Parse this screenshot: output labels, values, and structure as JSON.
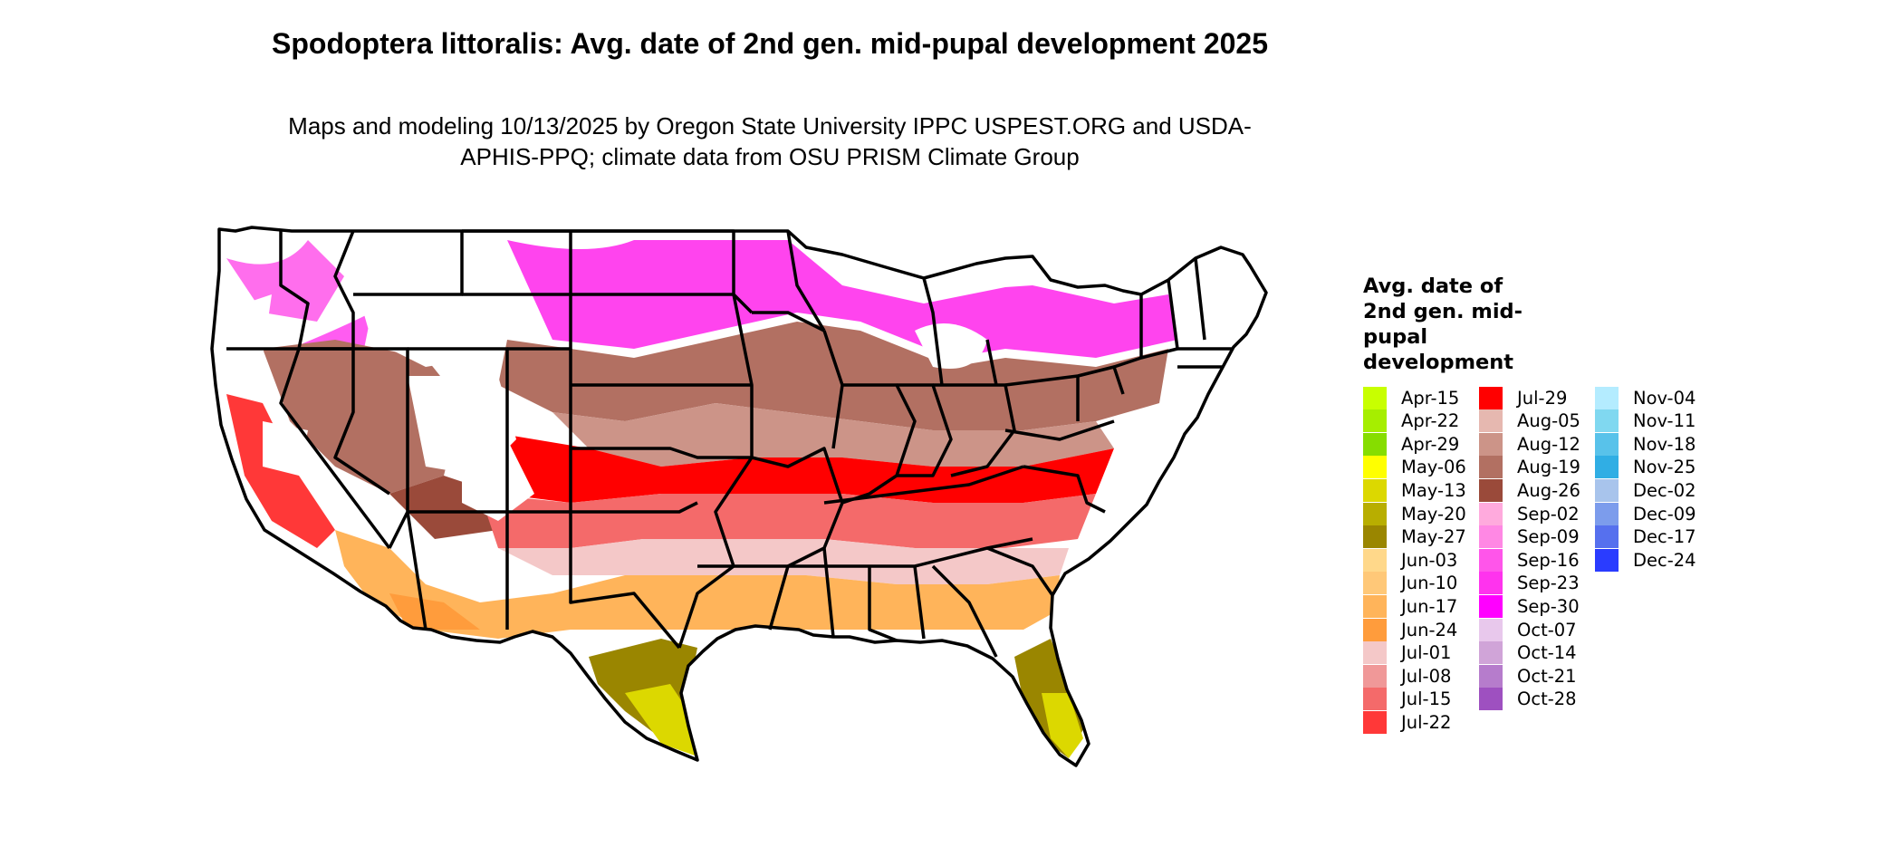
{
  "title": "Spodoptera littoralis: Avg. date of 2nd gen. mid-pupal development 2025",
  "subtitle": "Maps and modeling 10/13/2025 by Oregon State University IPPC USPEST.ORG and USDA-APHIS-PPQ; climate data from OSU PRISM Climate Group",
  "legend": {
    "title": "Avg. date of 2nd gen. mid-pupal development",
    "items": [
      {
        "label": "Apr-15",
        "color": "#c8ff00"
      },
      {
        "label": "Apr-22",
        "color": "#a6ee00"
      },
      {
        "label": "Apr-29",
        "color": "#86dd00"
      },
      {
        "label": "May-06",
        "color": "#ffff00"
      },
      {
        "label": "May-13",
        "color": "#dcd800"
      },
      {
        "label": "May-20",
        "color": "#b8ae00"
      },
      {
        "label": "May-27",
        "color": "#9a8600"
      },
      {
        "label": "Jun-03",
        "color": "#ffd88a"
      },
      {
        "label": "Jun-10",
        "color": "#ffc878"
      },
      {
        "label": "Jun-17",
        "color": "#ffb45a"
      },
      {
        "label": "Jun-24",
        "color": "#ff9c3c"
      },
      {
        "label": "Jul-01",
        "color": "#f4c8c8"
      },
      {
        "label": "Jul-08",
        "color": "#f09898"
      },
      {
        "label": "Jul-15",
        "color": "#f46a6a"
      },
      {
        "label": "Jul-22",
        "color": "#ff3838"
      },
      {
        "label": "Jul-29",
        "color": "#ff0000"
      },
      {
        "label": "Aug-05",
        "color": "#e6b8b0"
      },
      {
        "label": "Aug-12",
        "color": "#cc9488"
      },
      {
        "label": "Aug-19",
        "color": "#b27062"
      },
      {
        "label": "Aug-26",
        "color": "#9a4a3a"
      },
      {
        "label": "Sep-02",
        "color": "#ffaadd"
      },
      {
        "label": "Sep-09",
        "color": "#ff88e4"
      },
      {
        "label": "Sep-16",
        "color": "#ff55ea"
      },
      {
        "label": "Sep-23",
        "color": "#ff33ee"
      },
      {
        "label": "Sep-30",
        "color": "#ff00ff"
      },
      {
        "label": "Oct-07",
        "color": "#e8c8ec"
      },
      {
        "label": "Oct-14",
        "color": "#d0a4d8"
      },
      {
        "label": "Oct-21",
        "color": "#b67ccc"
      },
      {
        "label": "Oct-28",
        "color": "#9e50c0"
      },
      {
        "label": "Nov-04",
        "color": "#b4ecff"
      },
      {
        "label": "Nov-11",
        "color": "#80d8f0"
      },
      {
        "label": "Nov-18",
        "color": "#58c2ea"
      },
      {
        "label": "Nov-25",
        "color": "#30aee4"
      },
      {
        "label": "Dec-02",
        "color": "#a8c4ec"
      },
      {
        "label": "Dec-09",
        "color": "#7c9cec"
      },
      {
        "label": "Dec-17",
        "color": "#5670ee"
      },
      {
        "label": "Dec-24",
        "color": "#2a3cff"
      }
    ]
  }
}
